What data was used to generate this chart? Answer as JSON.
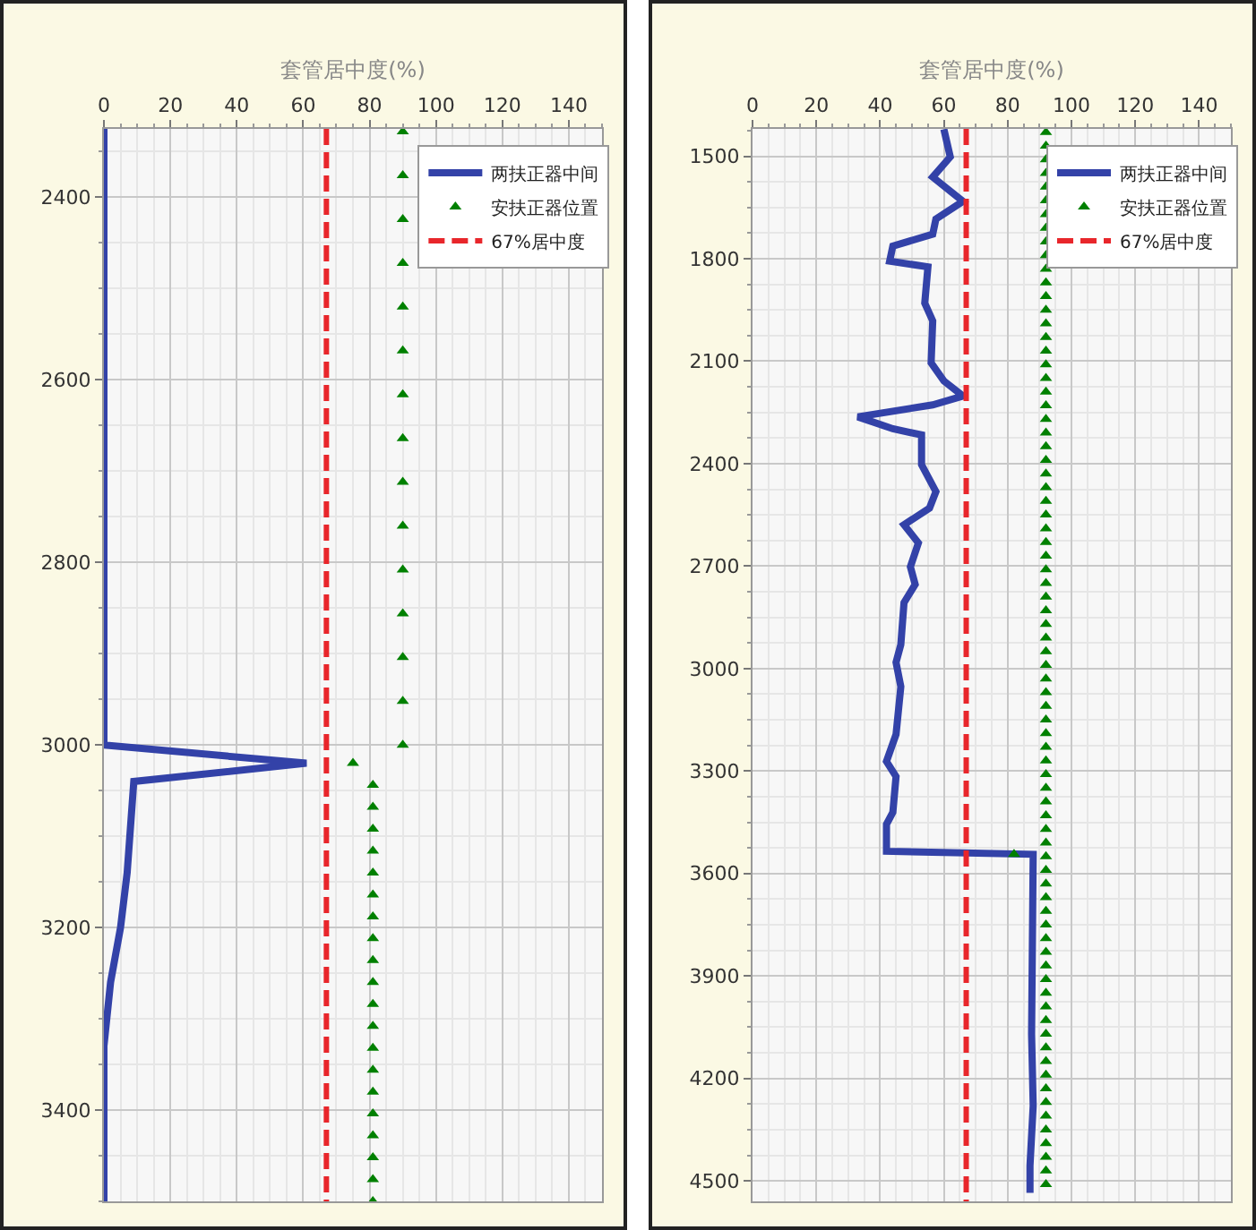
{
  "chart_data": [
    {
      "type": "line",
      "orientation": "horizontal",
      "xlabel": "套管居中度(%)",
      "xlim": [
        0,
        150
      ],
      "xticks": [
        0,
        20,
        40,
        60,
        80,
        100,
        120,
        140
      ],
      "ylim": [
        3500,
        2325
      ],
      "yticks": [
        2400,
        2600,
        2800,
        3000,
        3200,
        3400
      ],
      "grid": true,
      "legend": "top right",
      "series": [
        {
          "name": "两扶正器中间",
          "type": "line",
          "marker": "none",
          "color": "#3342a8",
          "x": [
            2325,
            3000,
            3020,
            3040,
            3140,
            3200,
            3260,
            3330,
            3500
          ],
          "values": [
            0,
            0,
            61,
            9,
            7,
            5,
            2,
            0,
            0
          ]
        },
        {
          "name": "安扶正器位置",
          "type": "scatter",
          "marker": "triangle",
          "color": "#008000",
          "x": [
            2328,
            2376,
            2424,
            2472,
            2520,
            2568,
            2616,
            2664,
            2712,
            2760,
            2808,
            2856,
            2904,
            2952,
            3000,
            3020,
            3044,
            3068,
            3092,
            3116,
            3140,
            3164,
            3188,
            3212,
            3236,
            3260,
            3284,
            3308,
            3332,
            3356,
            3380,
            3404,
            3428,
            3452,
            3476,
            3500
          ],
          "values": [
            90,
            90,
            90,
            90,
            90,
            90,
            90,
            90,
            90,
            90,
            90,
            90,
            90,
            90,
            90,
            75,
            81,
            81,
            81,
            81,
            81,
            81,
            81,
            81,
            81,
            81,
            81,
            81,
            81,
            81,
            81,
            81,
            81,
            81,
            81,
            81
          ]
        },
        {
          "name": "67%居中度",
          "type": "line",
          "marker": "none",
          "line_style": "dashed",
          "color": "#e8262b",
          "x": [
            2325,
            3500
          ],
          "values": [
            67,
            67
          ]
        }
      ]
    },
    {
      "type": "line",
      "orientation": "horizontal",
      "xlabel": "套管居中度(%)",
      "xlim": [
        0,
        150
      ],
      "xticks": [
        0,
        20,
        40,
        60,
        80,
        100,
        120,
        140
      ],
      "ylim": [
        4560,
        1420
      ],
      "yticks": [
        1500,
        1800,
        2100,
        2400,
        2700,
        3000,
        3300,
        3600,
        3900,
        4200,
        4500
      ],
      "grid": true,
      "legend": "top right",
      "series": [
        {
          "name": "两扶正器中间",
          "type": "line",
          "marker": "none",
          "color": "#3342a8",
          "x": [
            1421,
            1502,
            1561,
            1632,
            1684,
            1728,
            1763,
            1807,
            1824,
            1930,
            1982,
            2105,
            2158,
            2202,
            2228,
            2263,
            2298,
            2316,
            2403,
            2482,
            2530,
            2579,
            2632,
            2702,
            2754,
            2807,
            2930,
            2982,
            3053,
            3193,
            3272,
            3316,
            3421,
            3456,
            3535,
            3544,
            4070,
            4280,
            4456,
            4535
          ],
          "values": [
            60,
            62,
            56.5,
            66,
            57.5,
            56.5,
            44,
            43,
            55,
            54,
            56.5,
            56,
            60,
            66,
            56.5,
            33,
            44,
            53,
            53,
            57.5,
            55.5,
            47.5,
            52,
            49.5,
            51,
            47.5,
            46.5,
            45,
            46.5,
            45,
            42,
            45,
            44,
            42,
            42,
            88,
            87.5,
            88,
            87,
            87
          ]
        },
        {
          "name": "安扶正器位置",
          "type": "scatter",
          "marker": "triangle",
          "color": "#008000",
          "x": [
            1430,
            1470,
            1510,
            1550,
            1590,
            1630,
            1670,
            1710,
            1750,
            1790,
            1830,
            1870,
            1910,
            1950,
            1990,
            2030,
            2070,
            2110,
            2150,
            2190,
            2230,
            2270,
            2310,
            2350,
            2390,
            2430,
            2470,
            2510,
            2550,
            2590,
            2630,
            2670,
            2710,
            2750,
            2790,
            2830,
            2870,
            2910,
            2950,
            2990,
            3030,
            3070,
            3110,
            3150,
            3190,
            3230,
            3270,
            3310,
            3350,
            3390,
            3430,
            3470,
            3510,
            3544,
            3550,
            3590,
            3630,
            3670,
            3710,
            3750,
            3790,
            3830,
            3870,
            3910,
            3950,
            3990,
            4030,
            4070,
            4110,
            4150,
            4190,
            4230,
            4270,
            4310,
            4350,
            4390,
            4430,
            4470,
            4510
          ],
          "values": [
            92,
            92,
            92,
            92,
            92,
            92,
            92,
            92,
            92,
            92,
            92,
            92,
            92,
            92,
            92,
            92,
            92,
            92,
            92,
            92,
            92,
            92,
            92,
            92,
            92,
            92,
            92,
            92,
            92,
            92,
            92,
            92,
            92,
            92,
            92,
            92,
            92,
            92,
            92,
            92,
            92,
            92,
            92,
            92,
            92,
            92,
            92,
            92,
            92,
            92,
            92,
            92,
            92,
            82,
            92,
            92,
            92,
            92,
            92,
            92,
            92,
            92,
            92,
            92,
            92,
            92,
            92,
            92,
            92,
            92,
            92,
            92,
            92,
            92,
            92,
            92,
            92,
            92,
            92
          ]
        },
        {
          "name": "67%居中度",
          "type": "line",
          "marker": "none",
          "line_style": "dashed",
          "color": "#e8262b",
          "x": [
            1420,
            4560
          ],
          "values": [
            67,
            67
          ]
        }
      ]
    }
  ]
}
